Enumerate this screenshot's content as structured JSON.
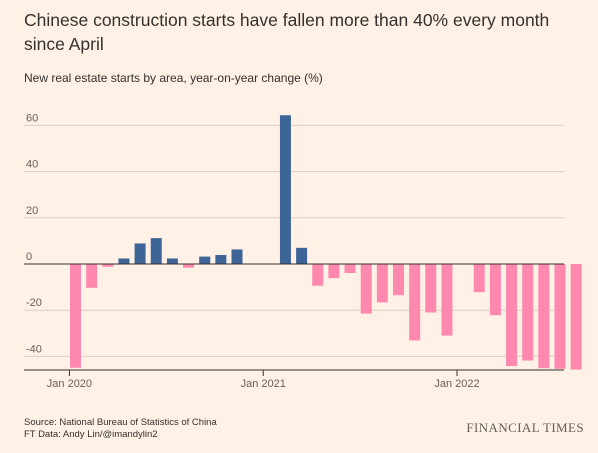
{
  "header": {
    "title": "Chinese construction starts have fallen more than 40% every month since April",
    "subtitle": "New real estate starts by area, year-on-year change (%)"
  },
  "footer": {
    "source_line1": "Source: National Bureau of Statistics of China",
    "source_line2": "FT Data: Andy Lin/@imandylin2",
    "brand": "FINANCIAL TIMES"
  },
  "colors": {
    "background": "#FFF1E5",
    "positive": "#3C6497",
    "negative": "#FF88AE",
    "grid": "#D9CCC1",
    "zero_line": "#33302E",
    "text": "#33302E"
  },
  "chart_data": {
    "type": "bar",
    "title": "Chinese construction starts have fallen more than 40% every month since April",
    "subtitle": "New real estate starts by area, year-on-year change (%)",
    "xlabel": "",
    "ylabel": "",
    "ylim": [
      -45,
      70
    ],
    "yticks": [
      60,
      40,
      20,
      0,
      -20,
      -40
    ],
    "xticks": [
      {
        "label": "Jan 2020",
        "month_index": 0
      },
      {
        "label": "Jan 2021",
        "month_index": 12
      },
      {
        "label": "Jan 2022",
        "month_index": 24
      }
    ],
    "grid": true,
    "legend": "none",
    "categories": [
      "2020-01",
      "2020-02",
      "2020-03",
      "2020-04",
      "2020-05",
      "2020-06",
      "2020-07",
      "2020-08",
      "2020-09",
      "2020-10",
      "2020-11",
      "2020-12",
      "2021-01",
      "2021-02",
      "2021-03",
      "2021-04",
      "2021-05",
      "2021-06",
      "2021-07",
      "2021-08",
      "2021-09",
      "2021-10",
      "2021-11",
      "2021-12",
      "2022-01",
      "2022-02",
      "2022-03",
      "2022-04",
      "2022-05",
      "2022-06",
      "2022-07",
      "2022-08"
    ],
    "values": [
      -44.9,
      -10.3,
      -1.2,
      2.4,
      8.9,
      11.2,
      2.4,
      -1.6,
      3.2,
      3.9,
      6.3,
      null,
      null,
      64.4,
      7.0,
      -9.4,
      -6.1,
      -3.9,
      -21.5,
      -16.6,
      -13.5,
      -33.1,
      -21.0,
      -31.0,
      null,
      -12.2,
      -22.2,
      -44.2,
      -41.8,
      -45.1,
      -45.4,
      -45.7
    ]
  }
}
